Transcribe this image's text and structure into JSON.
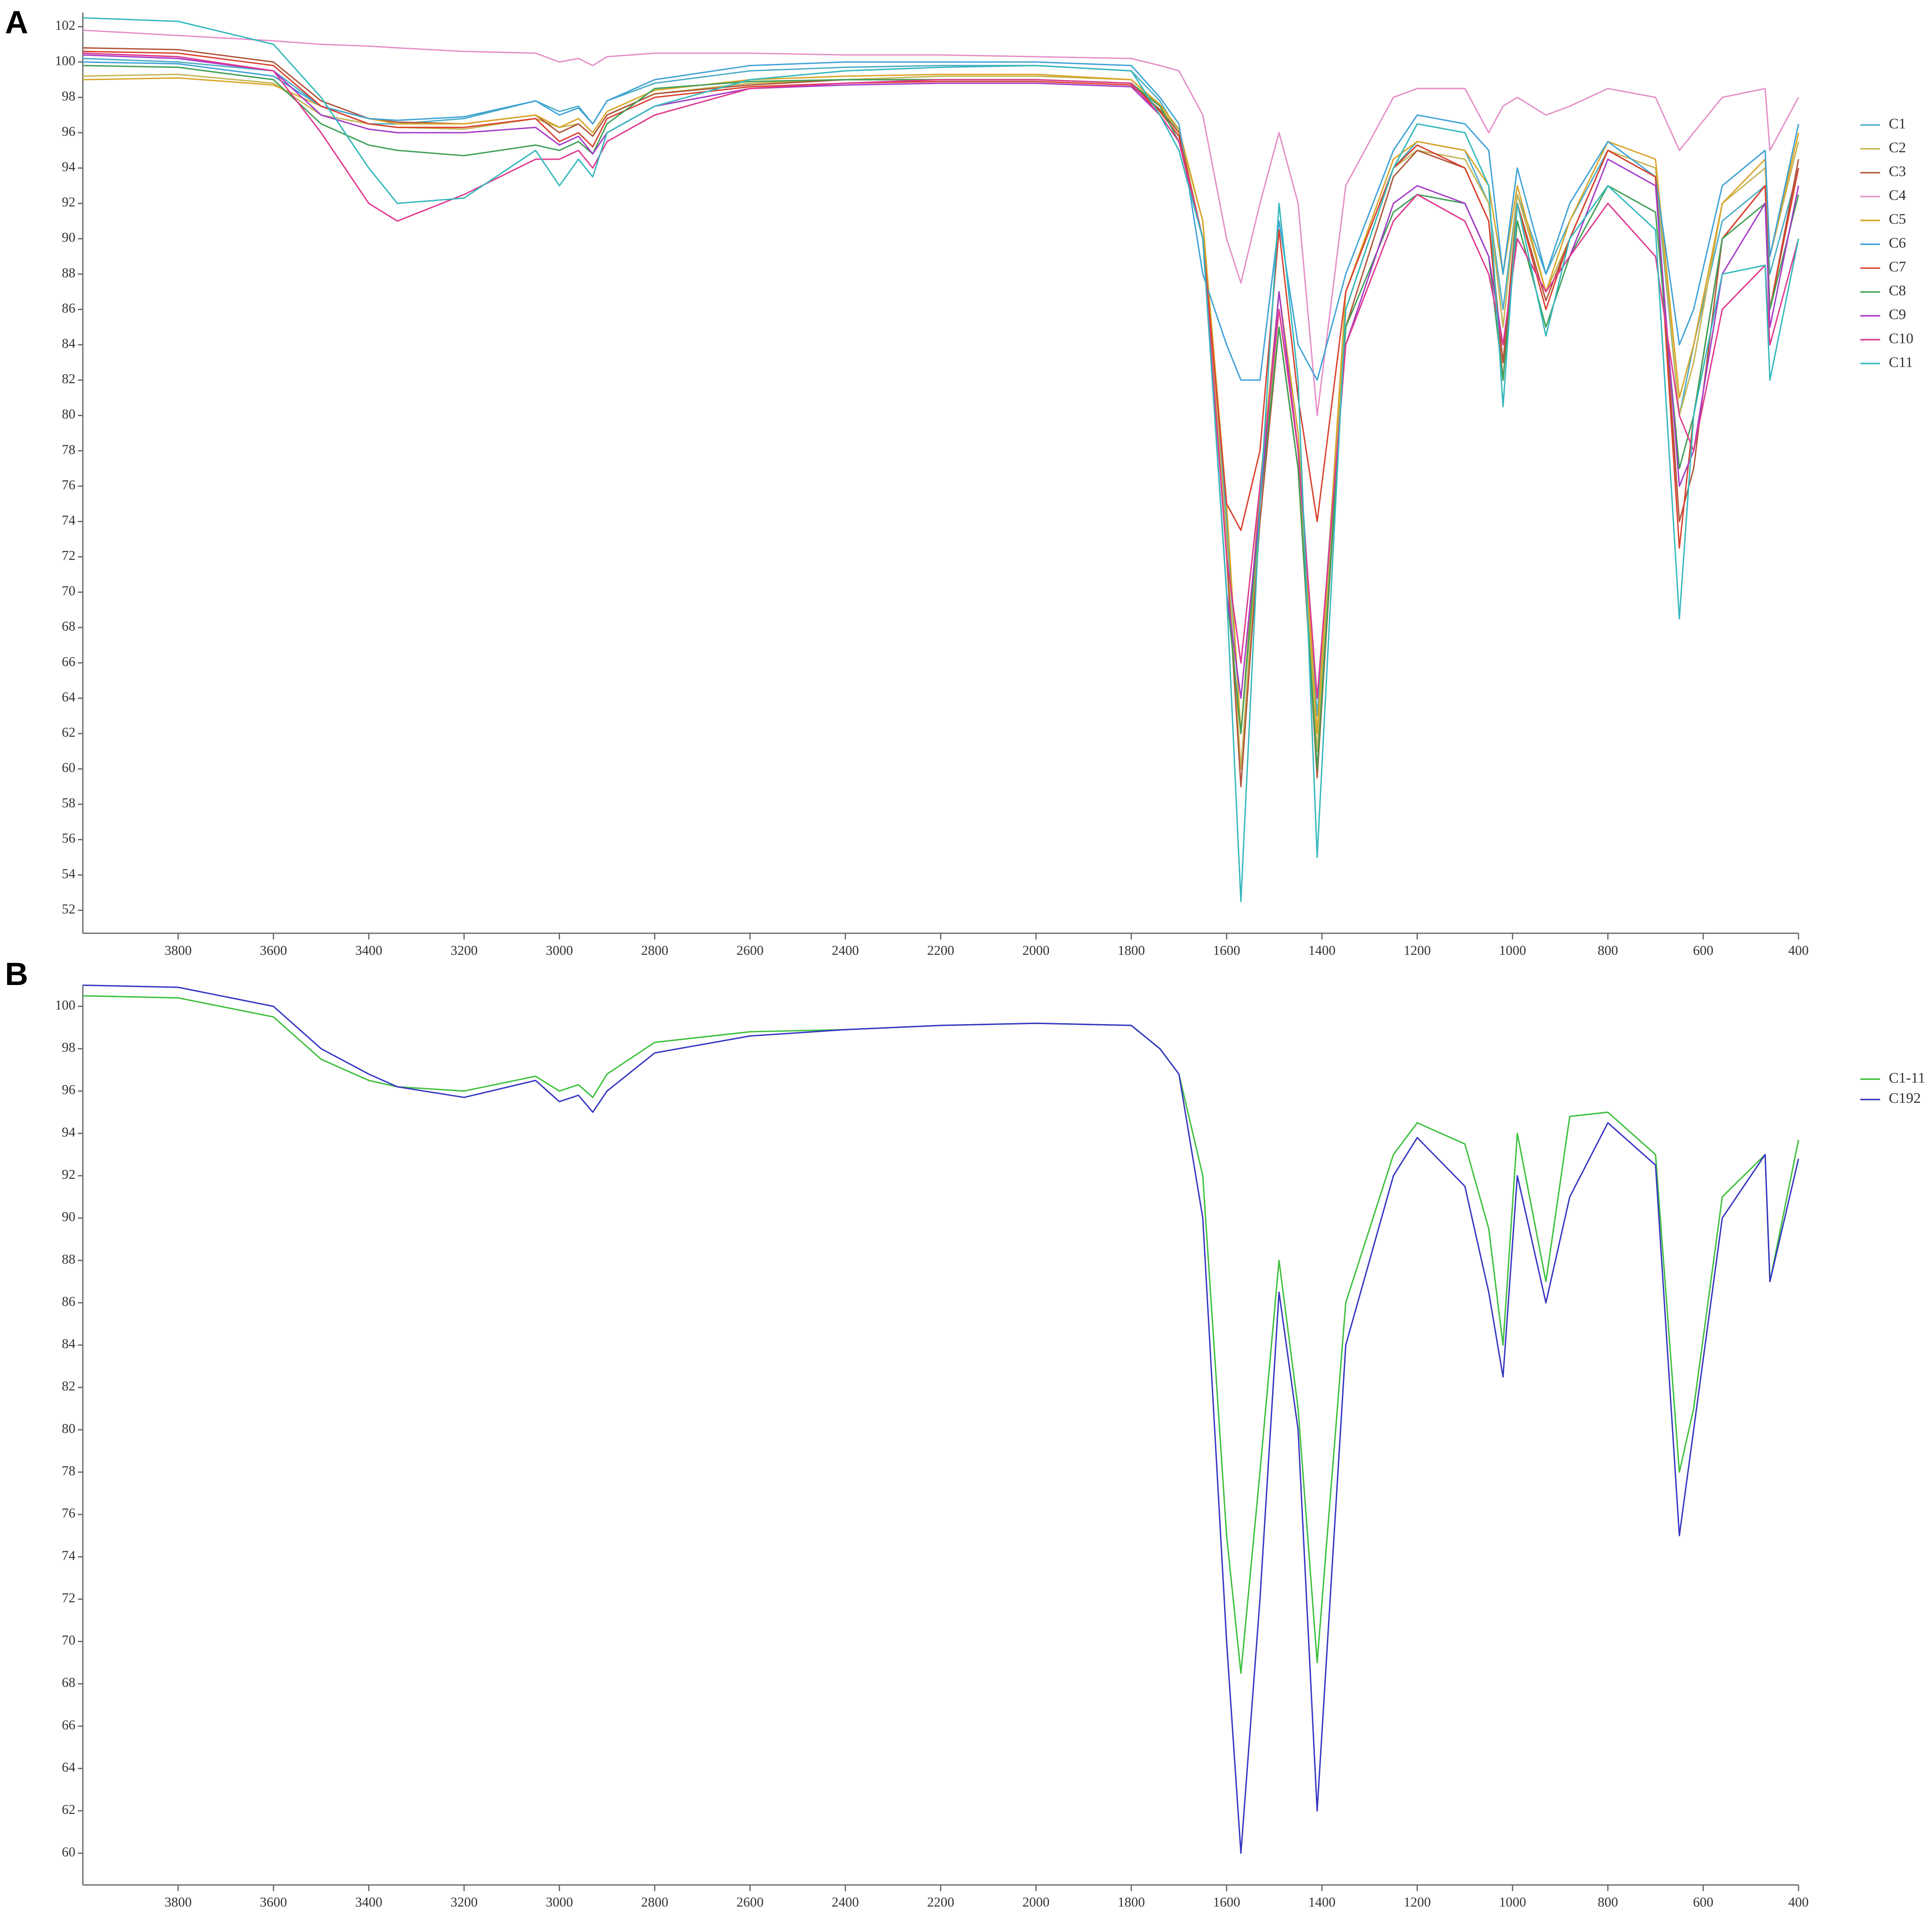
{
  "chart_data": [
    {
      "type": "line",
      "label": "A",
      "x": [
        4000,
        3800,
        3600,
        3500,
        3400,
        3340,
        3200,
        3050,
        3000,
        2960,
        2930,
        2900,
        2800,
        2600,
        2400,
        2200,
        2000,
        1800,
        1740,
        1700,
        1650,
        1600,
        1570,
        1530,
        1490,
        1450,
        1410,
        1350,
        1250,
        1200,
        1100,
        1050,
        1020,
        990,
        930,
        880,
        800,
        700,
        650,
        620,
        560,
        470,
        460,
        400
      ],
      "xlim": [
        4000,
        400
      ],
      "xticks": [
        3800,
        3600,
        3400,
        3200,
        3000,
        2800,
        2600,
        2400,
        2200,
        2000,
        1800,
        1600,
        1400,
        1200,
        1000,
        800,
        600,
        400
      ],
      "ylim": [
        50.7,
        102.8
      ],
      "yticks": [
        52,
        54,
        56,
        58,
        60,
        62,
        64,
        66,
        68,
        70,
        72,
        74,
        76,
        78,
        80,
        82,
        84,
        86,
        88,
        90,
        92,
        94,
        96,
        98,
        100,
        102
      ],
      "series": [
        {
          "name": "C1",
          "color": "#4bacc6",
          "values": [
            100.2,
            100,
            99.5,
            97.5,
            96.5,
            96.5,
            96.8,
            97.8,
            97.2,
            97.5,
            96.5,
            97.8,
            98.8,
            99.5,
            99.7,
            99.8,
            99.8,
            99.5,
            97.8,
            96,
            91,
            74,
            62,
            75,
            87,
            79,
            63,
            86,
            94,
            95.5,
            95,
            92,
            86,
            92.5,
            88,
            91,
            95,
            93.5,
            80,
            84,
            91,
            93,
            88,
            94
          ]
        },
        {
          "name": "C2",
          "color": "#c4b454",
          "values": [
            99.2,
            99.3,
            98.8,
            97,
            96.5,
            96.3,
            96.2,
            96.8,
            96.3,
            96.5,
            95.8,
            97,
            98.2,
            98.8,
            99,
            99.2,
            99.2,
            99,
            97.5,
            96,
            91,
            73,
            60,
            75,
            86,
            78,
            61,
            86,
            94,
            95,
            94.5,
            92,
            85,
            92.5,
            87,
            90,
            95,
            94,
            80,
            83,
            92,
            94,
            89,
            95.5
          ]
        },
        {
          "name": "C3",
          "color": "#b0553a",
          "values": [
            100.8,
            100.7,
            100,
            97.8,
            96.8,
            96.6,
            96.5,
            97,
            96,
            96.5,
            95.8,
            97,
            98.2,
            98.7,
            99,
            99,
            99,
            98.8,
            97.3,
            96,
            90,
            72,
            59,
            74,
            85,
            77,
            59.5,
            85,
            93.5,
            95,
            94,
            91,
            83,
            92,
            86.5,
            90,
            95,
            93.5,
            74,
            77,
            90,
            93,
            86,
            94.5
          ]
        },
        {
          "name": "C4",
          "color": "#e58fc8",
          "values": [
            101.8,
            101.5,
            101.2,
            101,
            100.9,
            100.8,
            100.6,
            100.5,
            100,
            100.2,
            99.8,
            100.3,
            100.5,
            100.5,
            100.4,
            100.4,
            100.3,
            100.2,
            99.8,
            99.5,
            97,
            90,
            87.5,
            92,
            96,
            92,
            80,
            93,
            98,
            98.5,
            98.5,
            96,
            97.5,
            98,
            97,
            97.5,
            98.5,
            98,
            95,
            96,
            98,
            98.5,
            95,
            98
          ]
        },
        {
          "name": "C5",
          "color": "#d9a528",
          "values": [
            99,
            99.1,
            98.7,
            97.5,
            96.8,
            96.5,
            96.5,
            97,
            96.3,
            96.8,
            96,
            97.2,
            98.4,
            99,
            99.2,
            99.3,
            99.3,
            99,
            97.6,
            96.2,
            91,
            75,
            62,
            76,
            87,
            79,
            62,
            87,
            94.5,
            95.5,
            95,
            93,
            88,
            93,
            87,
            91,
            95.5,
            94.5,
            81,
            84,
            92,
            94.5,
            89,
            96
          ]
        },
        {
          "name": "C6",
          "color": "#3fa2d6",
          "values": [
            100,
            99.9,
            99.2,
            97.5,
            96.8,
            96.7,
            96.9,
            97.8,
            97,
            97.4,
            96.5,
            97.8,
            99,
            99.8,
            100,
            100,
            100,
            99.8,
            98,
            96.5,
            88,
            84,
            82,
            82,
            91,
            84,
            82,
            88,
            95,
            97,
            96.5,
            95,
            88,
            94,
            88,
            92,
            95.5,
            93.5,
            84,
            86,
            93,
            95,
            89,
            96.5
          ]
        },
        {
          "name": "C7",
          "color": "#d9412e",
          "values": [
            100.6,
            100.5,
            99.8,
            97.5,
            96.5,
            96.3,
            96.3,
            96.8,
            95.5,
            96,
            95.2,
            96.8,
            98,
            98.6,
            98.8,
            98.9,
            98.9,
            98.7,
            97.2,
            95.8,
            90,
            75,
            73.5,
            78,
            90.5,
            81,
            74,
            87,
            94,
            95.3,
            94,
            91,
            82,
            92,
            86,
            90,
            95,
            93.5,
            72.5,
            80,
            90,
            93,
            86,
            94
          ]
        },
        {
          "name": "C8",
          "color": "#3f9f55",
          "values": [
            99.8,
            99.7,
            99,
            96.5,
            95.3,
            95,
            94.7,
            95.3,
            95,
            95.5,
            94.8,
            96.5,
            98.5,
            98.9,
            99,
            99,
            99,
            98.8,
            97.5,
            95.5,
            90,
            70,
            62,
            75,
            85,
            77,
            60,
            85,
            91.5,
            92.5,
            92,
            89,
            82,
            91,
            85,
            89,
            93,
            91.5,
            77,
            80,
            90,
            92,
            86,
            92.5
          ]
        },
        {
          "name": "C9",
          "color": "#a53ac8",
          "values": [
            100.4,
            100.2,
            99.5,
            97,
            96.2,
            96,
            96,
            96.3,
            95.3,
            95.8,
            94.8,
            96,
            97.5,
            98.5,
            98.7,
            98.8,
            98.8,
            98.6,
            97,
            95.5,
            90,
            70,
            64,
            75,
            87,
            78,
            64,
            84,
            92,
            93,
            92,
            89,
            84,
            90,
            87,
            89,
            94.5,
            93,
            76,
            78,
            88,
            92,
            85,
            93
          ]
        },
        {
          "name": "C10",
          "color": "#e0388f",
          "values": [
            100.5,
            100.3,
            99.5,
            96,
            92,
            91,
            92.5,
            94.5,
            94.5,
            95,
            94,
            95.5,
            97,
            98.5,
            98.8,
            99,
            99,
            98.8,
            97,
            95.5,
            90,
            72,
            66,
            76,
            86,
            78,
            64,
            84,
            91,
            92.5,
            91,
            88,
            84,
            90,
            87,
            89,
            92,
            89,
            80,
            78,
            86,
            88.5,
            84,
            90
          ]
        },
        {
          "name": "C11",
          "color": "#35b8bd",
          "values": [
            102.5,
            102.3,
            101,
            98,
            94,
            92,
            92.3,
            95,
            93,
            94.5,
            93.5,
            96,
            97.5,
            99,
            99.5,
            99.7,
            99.8,
            99.5,
            97,
            95,
            90,
            70,
            52.5,
            75,
            92,
            82,
            55,
            86,
            94,
            96.5,
            96,
            93,
            80.5,
            92,
            84.5,
            90,
            93,
            90.5,
            68.5,
            80,
            88,
            88.5,
            82,
            90
          ]
        }
      ]
    },
    {
      "type": "line",
      "label": "B",
      "x": [
        4000,
        3800,
        3600,
        3500,
        3400,
        3340,
        3200,
        3050,
        3000,
        2960,
        2930,
        2900,
        2800,
        2600,
        2400,
        2200,
        2000,
        1800,
        1740,
        1700,
        1650,
        1600,
        1570,
        1530,
        1490,
        1450,
        1410,
        1350,
        1250,
        1200,
        1100,
        1050,
        1020,
        990,
        930,
        880,
        800,
        700,
        650,
        620,
        560,
        470,
        460,
        400
      ],
      "xlim": [
        4000,
        400
      ],
      "xticks": [
        3800,
        3600,
        3400,
        3200,
        3000,
        2800,
        2600,
        2400,
        2200,
        2000,
        1800,
        1600,
        1400,
        1200,
        1000,
        800,
        600,
        400
      ],
      "ylim": [
        58.5,
        101
      ],
      "yticks": [
        60,
        62,
        64,
        66,
        68,
        70,
        72,
        74,
        76,
        78,
        80,
        82,
        84,
        86,
        88,
        90,
        92,
        94,
        96,
        98,
        100
      ],
      "series": [
        {
          "name": "C1-11",
          "color": "#3cbf3c",
          "values": [
            100.5,
            100.4,
            99.5,
            97.5,
            96.5,
            96.2,
            96,
            96.7,
            96,
            96.3,
            95.7,
            96.8,
            98.3,
            98.8,
            98.9,
            99.1,
            99.2,
            99.1,
            98,
            96.8,
            92,
            75,
            68.5,
            78,
            88,
            81,
            69,
            86,
            93,
            94.5,
            93.5,
            89.5,
            84,
            94,
            87,
            94.8,
            95,
            93,
            78,
            81,
            91,
            93,
            87,
            93.7
          ]
        },
        {
          "name": "C192",
          "color": "#3535c2",
          "values": [
            101,
            100.9,
            100,
            98,
            96.8,
            96.2,
            95.7,
            96.5,
            95.5,
            95.8,
            95,
            96,
            97.8,
            98.6,
            98.9,
            99.1,
            99.2,
            99.1,
            98,
            96.8,
            90,
            70,
            60,
            72,
            86.5,
            80,
            62,
            84,
            92,
            93.8,
            91.5,
            86.5,
            82.5,
            92,
            86,
            91,
            94.5,
            92.5,
            75,
            80,
            90,
            93,
            87,
            92.8
          ]
        }
      ]
    }
  ]
}
